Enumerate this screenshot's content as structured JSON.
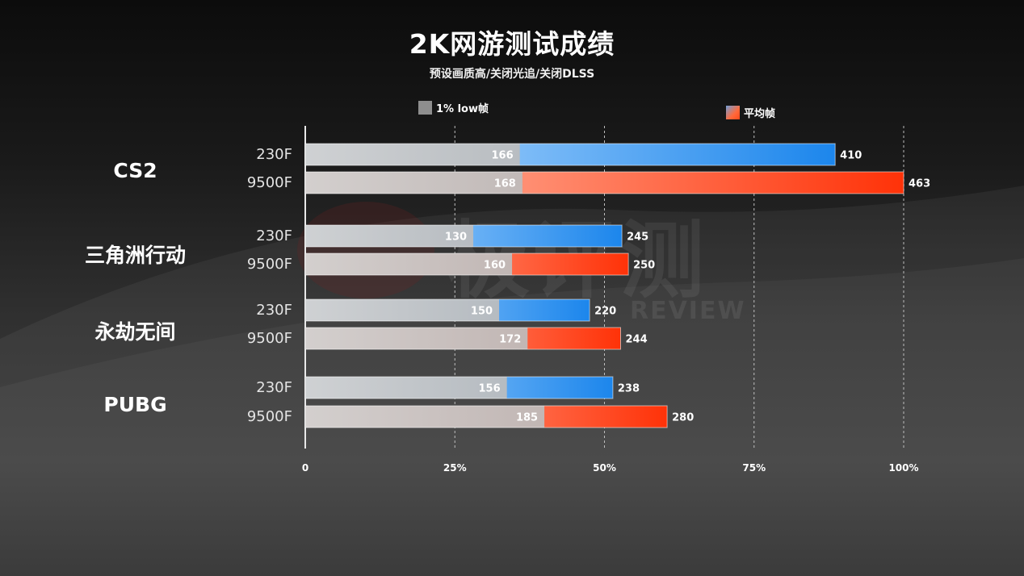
{
  "title": "2K网游测试成绩",
  "subtitle": "预设画质高/关闭光追/关闭DLSS",
  "legend": {
    "low_label": "1% low帧",
    "avg_label": "平均帧"
  },
  "watermark": {
    "main": "极评测",
    "sub": "REVIEW"
  },
  "colors": {
    "bar_base": "#c8c8c8",
    "series_230F": "#1e8ff0",
    "series_9500F": "#ff3a10"
  },
  "chart_data": {
    "type": "bar",
    "orientation": "horizontal",
    "title": "2K网游测试成绩",
    "subtitle": "预设画质高/关闭光追/关闭DLSS",
    "xlim": [
      0,
      100
    ],
    "x_ticks": [
      "0",
      "25%",
      "50%",
      "75%",
      "100%"
    ],
    "x_tick_values": [
      0,
      25,
      50,
      75,
      100
    ],
    "max_value": 463,
    "grid": true,
    "legend_placement": "top",
    "groups": [
      {
        "game": "CS2",
        "rows": [
          {
            "cpu": "230F",
            "low": 166,
            "avg": 410
          },
          {
            "cpu": "9500F",
            "low": 168,
            "avg": 463
          }
        ]
      },
      {
        "game": "三角洲行动",
        "rows": [
          {
            "cpu": "230F",
            "low": 130,
            "avg": 245
          },
          {
            "cpu": "9500F",
            "low": 160,
            "avg": 250
          }
        ]
      },
      {
        "game": "永劫无间",
        "rows": [
          {
            "cpu": "230F",
            "low": 150,
            "avg": 220
          },
          {
            "cpu": "9500F",
            "low": 172,
            "avg": 244
          }
        ]
      },
      {
        "game": "PUBG",
        "rows": [
          {
            "cpu": "230F",
            "low": 156,
            "avg": 238
          },
          {
            "cpu": "9500F",
            "low": 185,
            "avg": 280
          }
        ]
      }
    ]
  }
}
